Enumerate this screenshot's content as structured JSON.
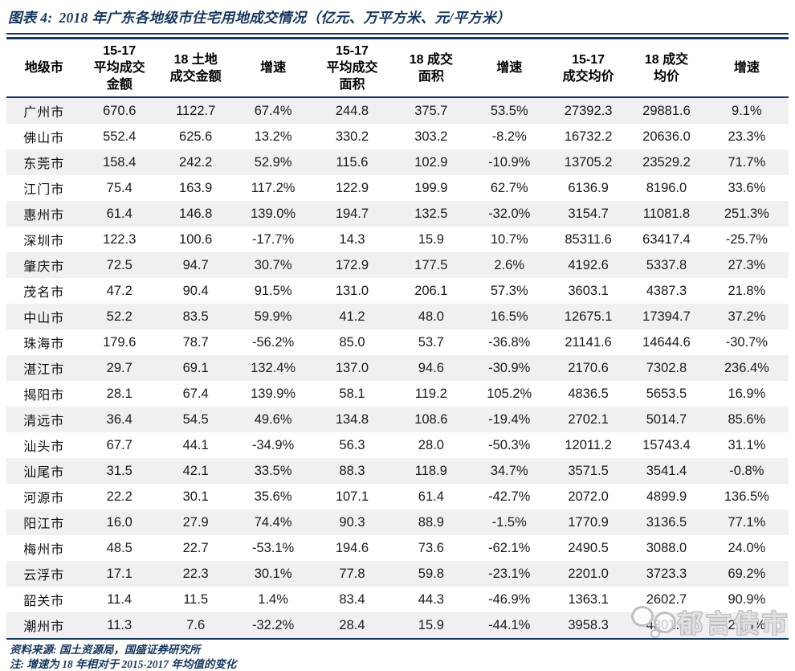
{
  "title": {
    "prefix": "图表 4:",
    "text": "2018 年广东各地级市住宅用地成交情况（亿元、万平方米、元/平方米）"
  },
  "table": {
    "columns": [
      "地级市",
      "15-17\n平均成交\n金额",
      "18 土地\n成交金额",
      "增速",
      "15-17\n平均成交\n面积",
      "18 成交\n面积",
      "增速",
      "15-17\n成交均价",
      "18 成交\n均价",
      "增速"
    ],
    "rows": [
      [
        "广州市",
        "670.6",
        "1122.7",
        "67.4%",
        "244.8",
        "375.7",
        "53.5%",
        "27392.3",
        "29881.6",
        "9.1%"
      ],
      [
        "佛山市",
        "552.4",
        "625.6",
        "13.2%",
        "330.2",
        "303.2",
        "-8.2%",
        "16732.2",
        "20636.0",
        "23.3%"
      ],
      [
        "东莞市",
        "158.4",
        "242.2",
        "52.9%",
        "115.6",
        "102.9",
        "-10.9%",
        "13705.2",
        "23529.2",
        "71.7%"
      ],
      [
        "江门市",
        "75.4",
        "163.9",
        "117.2%",
        "122.9",
        "199.9",
        "62.7%",
        "6136.9",
        "8196.0",
        "33.6%"
      ],
      [
        "惠州市",
        "61.4",
        "146.8",
        "139.0%",
        "194.7",
        "132.5",
        "-32.0%",
        "3154.7",
        "11081.8",
        "251.3%"
      ],
      [
        "深圳市",
        "122.3",
        "100.6",
        "-17.7%",
        "14.3",
        "15.9",
        "10.7%",
        "85311.6",
        "63417.4",
        "-25.7%"
      ],
      [
        "肇庆市",
        "72.5",
        "94.7",
        "30.7%",
        "172.9",
        "177.5",
        "2.6%",
        "4192.6",
        "5337.8",
        "27.3%"
      ],
      [
        "茂名市",
        "47.2",
        "90.4",
        "91.5%",
        "131.0",
        "206.1",
        "57.3%",
        "3603.1",
        "4387.3",
        "21.8%"
      ],
      [
        "中山市",
        "52.2",
        "83.5",
        "59.9%",
        "41.2",
        "48.0",
        "16.5%",
        "12675.1",
        "17394.7",
        "37.2%"
      ],
      [
        "珠海市",
        "179.6",
        "78.7",
        "-56.2%",
        "85.0",
        "53.7",
        "-36.8%",
        "21141.6",
        "14644.6",
        "-30.7%"
      ],
      [
        "湛江市",
        "29.7",
        "69.1",
        "132.4%",
        "137.0",
        "94.6",
        "-30.9%",
        "2170.6",
        "7302.8",
        "236.4%"
      ],
      [
        "揭阳市",
        "28.1",
        "67.4",
        "139.9%",
        "58.1",
        "119.2",
        "105.2%",
        "4836.5",
        "5653.5",
        "16.9%"
      ],
      [
        "清远市",
        "36.4",
        "54.5",
        "49.6%",
        "134.8",
        "108.6",
        "-19.4%",
        "2702.1",
        "5014.7",
        "85.6%"
      ],
      [
        "汕头市",
        "67.7",
        "44.1",
        "-34.9%",
        "56.3",
        "28.0",
        "-50.3%",
        "12011.2",
        "15743.4",
        "31.1%"
      ],
      [
        "汕尾市",
        "31.5",
        "42.1",
        "33.5%",
        "88.3",
        "118.9",
        "34.7%",
        "3571.5",
        "3541.4",
        "-0.8%"
      ],
      [
        "河源市",
        "22.2",
        "30.1",
        "35.6%",
        "107.1",
        "61.4",
        "-42.7%",
        "2072.0",
        "4899.9",
        "136.5%"
      ],
      [
        "阳江市",
        "16.0",
        "27.9",
        "74.4%",
        "90.3",
        "88.9",
        "-1.5%",
        "1770.9",
        "3136.5",
        "77.1%"
      ],
      [
        "梅州市",
        "48.5",
        "22.7",
        "-53.1%",
        "194.6",
        "73.6",
        "-62.1%",
        "2490.5",
        "3088.0",
        "24.0%"
      ],
      [
        "云浮市",
        "17.1",
        "22.3",
        "30.1%",
        "77.8",
        "59.8",
        "-23.1%",
        "2201.0",
        "3723.3",
        "69.2%"
      ],
      [
        "韶关市",
        "11.4",
        "11.5",
        "1.4%",
        "83.4",
        "44.3",
        "-46.9%",
        "1363.1",
        "2602.7",
        "90.9%"
      ],
      [
        "潮州市",
        "11.3",
        "7.6",
        "-32.2%",
        "28.4",
        "15.9",
        "-44.1%",
        "3958.3",
        "4801.8",
        "21.3%"
      ]
    ]
  },
  "footer": {
    "source": "资料来源: 国土资源局，国盛证券研究所",
    "note": "注: 增速为 18 年相对于 2015-2017 年均值的变化"
  },
  "watermark": {
    "icon": "chat-bubble-icon",
    "text": "郁言债市"
  },
  "colors": {
    "navy": "#17375E",
    "stripe_gray": "#F0F0F0",
    "body_text": "#1A1A1A",
    "watermark_gray": "#BDBDBD"
  }
}
